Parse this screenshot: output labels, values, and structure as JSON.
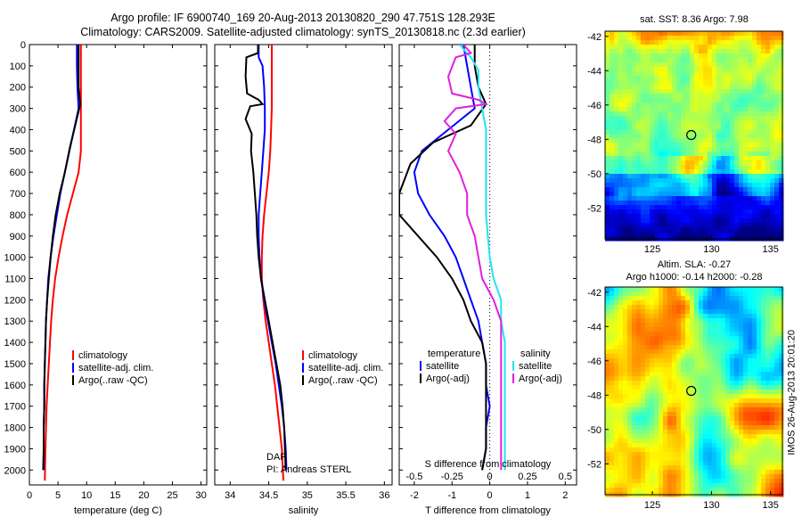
{
  "header": {
    "line1": "Argo profile: IF 6900740_169 20-Aug-2013 20130820_290 47.751S 128.293E",
    "line2": "Climatology: CARS2009. Satellite-adjusted climatology: synTS_20130818.nc (2.3d earlier)"
  },
  "footer_stamp": "IMOS 26-Aug-2013 20:01:20",
  "colors": {
    "climatology": "#ff0000",
    "satellite": "#0000ff",
    "argo": "#000000",
    "salinity_sat": "#22e5f0",
    "salinity_argo": "#e020e0"
  },
  "chart_data": [
    {
      "id": "temperature",
      "type": "line",
      "xlabel": "temperature (deg C)",
      "ylabel": "",
      "xlim": [
        0,
        31
      ],
      "ylim": [
        2070,
        0
      ],
      "xticks": [
        0,
        5,
        10,
        15,
        20,
        25,
        30
      ],
      "yticks": [
        0,
        100,
        200,
        300,
        400,
        500,
        600,
        700,
        800,
        900,
        1000,
        1100,
        1200,
        1300,
        1400,
        1500,
        1600,
        1700,
        1800,
        1900,
        2000
      ],
      "legend": [
        "climatology",
        "satellite-adj. clim.",
        "Argo(..raw -QC)"
      ],
      "series": [
        {
          "name": "climatology",
          "color": "#ff0000",
          "points": [
            [
              9.0,
              0
            ],
            [
              9.0,
              100
            ],
            [
              9.0,
              200
            ],
            [
              9.0,
              300
            ],
            [
              9.0,
              400
            ],
            [
              9.0,
              500
            ],
            [
              8.6,
              600
            ],
            [
              7.6,
              700
            ],
            [
              6.6,
              800
            ],
            [
              5.8,
              900
            ],
            [
              5.1,
              1000
            ],
            [
              4.5,
              1100
            ],
            [
              4.1,
              1200
            ],
            [
              3.8,
              1300
            ],
            [
              3.6,
              1400
            ],
            [
              3.4,
              1500
            ],
            [
              3.2,
              1600
            ],
            [
              3.0,
              1700
            ],
            [
              2.9,
              1800
            ],
            [
              2.8,
              1900
            ],
            [
              2.7,
              2050
            ]
          ]
        },
        {
          "name": "satellite-adj. clim.",
          "color": "#0000ff",
          "points": [
            [
              8.3,
              0
            ],
            [
              8.3,
              100
            ],
            [
              8.4,
              200
            ],
            [
              8.6,
              300
            ],
            [
              7.8,
              400
            ],
            [
              7.0,
              500
            ],
            [
              6.2,
              600
            ],
            [
              5.4,
              700
            ],
            [
              4.8,
              800
            ],
            [
              4.2,
              900
            ],
            [
              3.7,
              1000
            ],
            [
              3.3,
              1100
            ],
            [
              3.1,
              1200
            ],
            [
              2.9,
              1300
            ],
            [
              2.8,
              1400
            ],
            [
              2.7,
              1500
            ],
            [
              2.6,
              1600
            ],
            [
              2.6,
              1700
            ],
            [
              2.5,
              1800
            ],
            [
              2.5,
              1900
            ],
            [
              2.5,
              2000
            ]
          ]
        },
        {
          "name": "Argo(..raw -QC)",
          "color": "#000000",
          "points": [
            [
              8.6,
              0
            ],
            [
              8.6,
              100
            ],
            [
              8.6,
              200
            ],
            [
              8.9,
              280
            ],
            [
              8.0,
              380
            ],
            [
              7.1,
              480
            ],
            [
              6.2,
              600
            ],
            [
              5.3,
              700
            ],
            [
              4.6,
              800
            ],
            [
              4.1,
              900
            ],
            [
              3.7,
              1000
            ],
            [
              3.4,
              1100
            ],
            [
              3.1,
              1200
            ],
            [
              2.9,
              1300
            ],
            [
              2.8,
              1400
            ],
            [
              2.7,
              1500
            ],
            [
              2.6,
              1600
            ],
            [
              2.6,
              1700
            ],
            [
              2.5,
              1800
            ],
            [
              2.5,
              1900
            ],
            [
              2.4,
              2000
            ]
          ]
        }
      ]
    },
    {
      "id": "salinity",
      "type": "line",
      "xlabel": "salinity",
      "xlim": [
        33.8,
        36.1
      ],
      "ylim": [
        2070,
        0
      ],
      "xticks": [
        34,
        34.5,
        35,
        35.5,
        36
      ],
      "legend": [
        "climatology",
        "satellite-adj. clim.",
        "Argo(..raw -QC)"
      ],
      "annotations": [
        "DAP",
        "PI: Andreas STERL"
      ],
      "series": [
        {
          "name": "climatology",
          "color": "#ff0000",
          "points": [
            [
              34.54,
              0
            ],
            [
              34.54,
              100
            ],
            [
              34.54,
              200
            ],
            [
              34.54,
              300
            ],
            [
              34.53,
              400
            ],
            [
              34.52,
              500
            ],
            [
              34.5,
              600
            ],
            [
              34.47,
              700
            ],
            [
              34.44,
              800
            ],
            [
              34.42,
              900
            ],
            [
              34.41,
              1000
            ],
            [
              34.41,
              1100
            ],
            [
              34.43,
              1200
            ],
            [
              34.46,
              1300
            ],
            [
              34.5,
              1400
            ],
            [
              34.54,
              1500
            ],
            [
              34.58,
              1600
            ],
            [
              34.61,
              1700
            ],
            [
              34.64,
              1800
            ],
            [
              34.67,
              1900
            ],
            [
              34.69,
              2050
            ]
          ]
        },
        {
          "name": "satellite-adj. clim.",
          "color": "#0000ff",
          "points": [
            [
              34.37,
              0
            ],
            [
              34.37,
              60
            ],
            [
              34.42,
              100
            ],
            [
              34.44,
              200
            ],
            [
              34.45,
              300
            ],
            [
              34.45,
              400
            ],
            [
              34.43,
              500
            ],
            [
              34.41,
              600
            ],
            [
              34.39,
              700
            ],
            [
              34.37,
              800
            ],
            [
              34.37,
              900
            ],
            [
              34.38,
              1000
            ],
            [
              34.4,
              1100
            ],
            [
              34.44,
              1200
            ],
            [
              34.49,
              1300
            ],
            [
              34.54,
              1400
            ],
            [
              34.59,
              1500
            ],
            [
              34.63,
              1600
            ],
            [
              34.67,
              1700
            ],
            [
              34.7,
              1800
            ],
            [
              34.72,
              1900
            ],
            [
              34.73,
              2000
            ]
          ]
        },
        {
          "name": "Argo(..raw -QC)",
          "color": "#000000",
          "points": [
            [
              34.36,
              0
            ],
            [
              34.36,
              40
            ],
            [
              34.21,
              60
            ],
            [
              34.2,
              150
            ],
            [
              34.22,
              230
            ],
            [
              34.37,
              260
            ],
            [
              34.42,
              280
            ],
            [
              34.26,
              290
            ],
            [
              34.2,
              350
            ],
            [
              34.28,
              420
            ],
            [
              34.27,
              500
            ],
            [
              34.3,
              600
            ],
            [
              34.32,
              700
            ],
            [
              34.34,
              800
            ],
            [
              34.35,
              900
            ],
            [
              34.37,
              1000
            ],
            [
              34.4,
              1100
            ],
            [
              34.45,
              1200
            ],
            [
              34.5,
              1300
            ],
            [
              34.55,
              1400
            ],
            [
              34.6,
              1500
            ],
            [
              34.65,
              1600
            ],
            [
              34.68,
              1700
            ],
            [
              34.7,
              1800
            ],
            [
              34.71,
              1900
            ],
            [
              34.72,
              2000
            ]
          ]
        }
      ]
    },
    {
      "id": "difference",
      "type": "line",
      "xlabel": "T difference from climatology",
      "xlabel_top": "S difference from climatology",
      "xlim": [
        -2.4,
        2.3
      ],
      "ylim": [
        2070,
        0
      ],
      "xticks": [
        -2,
        -1,
        0,
        1,
        2
      ],
      "xticks_s": [
        -0.5,
        -0.25,
        0,
        0.25,
        0.5
      ],
      "legend_temp_title": "temperature",
      "legend_sal_title": "salinity",
      "legend": [
        "satellite",
        "Argo(-adj)",
        "satellite",
        "Argo(-adj)"
      ],
      "series": [
        {
          "name": "satellite",
          "group": "temperature",
          "color": "#0000ff",
          "points": [
            [
              -0.7,
              0
            ],
            [
              -0.6,
              100
            ],
            [
              -0.5,
              200
            ],
            [
              -0.4,
              300
            ],
            [
              -1.1,
              400
            ],
            [
              -1.8,
              500
            ],
            [
              -2.0,
              600
            ],
            [
              -1.9,
              700
            ],
            [
              -1.6,
              800
            ],
            [
              -1.2,
              900
            ],
            [
              -0.9,
              1000
            ],
            [
              -0.7,
              1100
            ],
            [
              -0.5,
              1200
            ],
            [
              -0.3,
              1300
            ],
            [
              -0.2,
              1400
            ],
            [
              -0.1,
              1500
            ],
            [
              -0.1,
              1600
            ],
            [
              0.0,
              1700
            ],
            [
              -0.1,
              1800
            ],
            [
              -0.1,
              1900
            ],
            [
              -0.2,
              2000
            ]
          ]
        },
        {
          "name": "Argo(-adj)",
          "group": "temperature",
          "color": "#000000",
          "points": [
            [
              -0.4,
              0
            ],
            [
              -0.4,
              100
            ],
            [
              -0.3,
              200
            ],
            [
              -0.1,
              280
            ],
            [
              -0.5,
              380
            ],
            [
              -1.5,
              460
            ],
            [
              -2.1,
              560
            ],
            [
              -2.4,
              700
            ],
            [
              -2.4,
              800
            ],
            [
              -1.9,
              900
            ],
            [
              -1.4,
              1000
            ],
            [
              -1.0,
              1100
            ],
            [
              -0.7,
              1200
            ],
            [
              -0.5,
              1300
            ],
            [
              -0.2,
              1400
            ],
            [
              -0.1,
              1500
            ],
            [
              -0.1,
              1600
            ],
            [
              -0.1,
              1700
            ],
            [
              -0.1,
              1800
            ],
            [
              -0.1,
              1900
            ],
            [
              -0.2,
              2000
            ]
          ]
        },
        {
          "name": "satellite",
          "group": "salinity",
          "color": "#22e5f0",
          "points": [
            [
              -0.8,
              0
            ],
            [
              -0.5,
              60
            ],
            [
              -0.3,
              120
            ],
            [
              -0.3,
              200
            ],
            [
              -0.2,
              300
            ],
            [
              -0.1,
              400
            ],
            [
              -0.1,
              500
            ],
            [
              -0.1,
              600
            ],
            [
              -0.1,
              700
            ],
            [
              -0.1,
              800
            ],
            [
              -0.05,
              900
            ],
            [
              0.0,
              1000
            ],
            [
              0.1,
              1100
            ],
            [
              0.3,
              1200
            ],
            [
              0.3,
              1300
            ],
            [
              0.4,
              1400
            ],
            [
              0.4,
              1500
            ],
            [
              0.4,
              1600
            ],
            [
              0.4,
              1700
            ],
            [
              0.4,
              1800
            ],
            [
              0.4,
              1900
            ],
            [
              0.4,
              2000
            ]
          ]
        },
        {
          "name": "Argo(-adj)",
          "group": "salinity",
          "color": "#e020e0",
          "points": [
            [
              -0.7,
              0
            ],
            [
              -0.5,
              40
            ],
            [
              -0.9,
              60
            ],
            [
              -1.1,
              150
            ],
            [
              -1.0,
              230
            ],
            [
              -0.3,
              260
            ],
            [
              -0.1,
              280
            ],
            [
              -0.9,
              300
            ],
            [
              -1.2,
              360
            ],
            [
              -0.9,
              420
            ],
            [
              -1.1,
              500
            ],
            [
              -0.8,
              600
            ],
            [
              -0.6,
              700
            ],
            [
              -0.6,
              800
            ],
            [
              -0.4,
              900
            ],
            [
              -0.3,
              1000
            ],
            [
              -0.2,
              1100
            ],
            [
              0.1,
              1200
            ],
            [
              0.3,
              1300
            ],
            [
              0.3,
              1400
            ],
            [
              0.3,
              1500
            ],
            [
              0.3,
              1600
            ],
            [
              0.3,
              1700
            ],
            [
              0.3,
              1800
            ],
            [
              0.3,
              1900
            ],
            [
              0.3,
              2000
            ]
          ]
        }
      ]
    },
    {
      "id": "sst_map",
      "type": "heatmap",
      "title": "sat. SST: 8.36  Argo: 7.98",
      "xlim": [
        121,
        136
      ],
      "ylim": [
        -53.8,
        -41.7
      ],
      "xticks": [
        125,
        130,
        135
      ],
      "yticks": [
        -42,
        -44,
        -46,
        -48,
        -50,
        -52
      ],
      "marker": [
        128.29,
        -47.75
      ]
    },
    {
      "id": "sla_map",
      "type": "heatmap",
      "title_line1": "Altim. SLA: -0.27",
      "title_line2": "Argo h1000: -0.14 h2000: -0.28",
      "xlim": [
        121,
        136
      ],
      "ylim": [
        -53.8,
        -41.7
      ],
      "xticks": [
        125,
        130,
        135
      ],
      "yticks": [
        -42,
        -44,
        -46,
        -48,
        -50,
        -52
      ],
      "marker": [
        128.29,
        -47.75
      ]
    }
  ]
}
